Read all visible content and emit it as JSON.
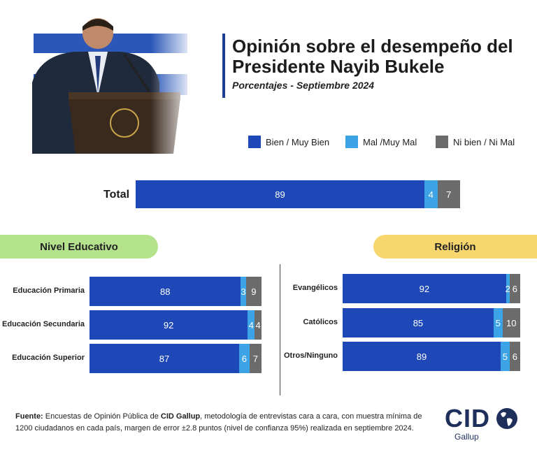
{
  "header": {
    "title_line1": "Opinión sobre el desempeño del",
    "title_line2": "Presidente Nayib Bukele",
    "subtitle": "Porcentajes - Septiembre 2024"
  },
  "colors": {
    "bien": "#1e48b8",
    "mal": "#3ba3e6",
    "ni": "#6b6b6b",
    "education_pill": "#b5e28c",
    "religion_pill": "#f8d66e",
    "accent": "#1e3d99"
  },
  "sections": {
    "education": "Nivel Educativo",
    "religion": "Religión"
  },
  "chart_data": {
    "type": "bar",
    "orientation": "horizontal-stacked",
    "title": "Opinión sobre el desempeño del Presidente Nayib Bukele",
    "subtitle": "Porcentajes - Septiembre 2024",
    "series_names": [
      "Bien / Muy Bien",
      "Mal /Muy Mal",
      "Ni bien / Ni Mal"
    ],
    "legend_position": "top-right",
    "total": {
      "label": "Total",
      "values": [
        89,
        4,
        7
      ]
    },
    "education": {
      "categories": [
        "Educación Primaria",
        "Educación Secundaria",
        "Educación Superior"
      ],
      "series": [
        {
          "name": "Bien / Muy Bien",
          "values": [
            88,
            92,
            87
          ]
        },
        {
          "name": "Mal /Muy Mal",
          "values": [
            3,
            4,
            6
          ]
        },
        {
          "name": "Ni bien / Ni Mal",
          "values": [
            9,
            4,
            7
          ]
        }
      ]
    },
    "religion": {
      "categories": [
        "Evangélicos",
        "Católicos",
        "Otros/Ninguno"
      ],
      "series": [
        {
          "name": "Bien / Muy Bien",
          "values": [
            92,
            85,
            89
          ]
        },
        {
          "name": "Mal /Muy Mal",
          "values": [
            2,
            5,
            5
          ]
        },
        {
          "name": "Ni bien / Ni Mal",
          "values": [
            6,
            10,
            6
          ]
        }
      ]
    }
  },
  "footer": {
    "source_label": "Fuente:",
    "text_a": " Encuestas de Opinión Pública de ",
    "brand": "CID Gallup",
    "text_b": ", metodología de entrevistas cara a cara, con muestra mínima de 1200 ciudadanos en cada país, margen de error ±2.8 puntos (nivel de confianza 95%) realizada en septiembre 2024."
  },
  "logo": {
    "main": "CID",
    "sub": "Gallup",
    "icon": "globe-icon"
  },
  "photo": {
    "icon": "president-photo-icon"
  }
}
